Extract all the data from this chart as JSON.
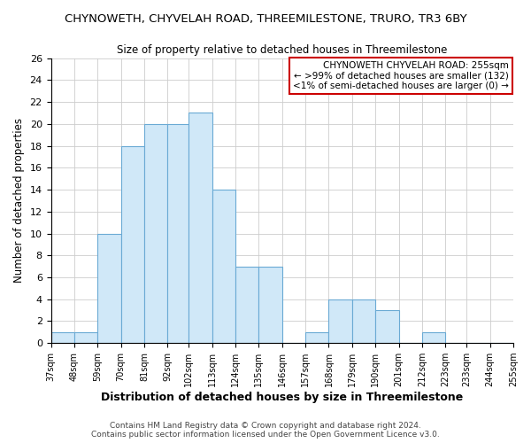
{
  "title": "CHYNOWETH, CHYVELAH ROAD, THREEMILESTONE, TRURO, TR3 6BY",
  "subtitle": "Size of property relative to detached houses in Threemilestone",
  "xlabel": "Distribution of detached houses by size in Threemilestone",
  "ylabel": "Number of detached properties",
  "bin_edges": [
    37,
    48,
    59,
    70,
    81,
    92,
    102,
    113,
    124,
    135,
    146,
    157,
    168,
    179,
    190,
    201,
    212,
    223,
    233,
    244,
    255
  ],
  "counts": [
    1,
    1,
    10,
    18,
    20,
    20,
    21,
    14,
    7,
    7,
    0,
    1,
    4,
    4,
    3,
    0,
    1,
    0,
    0,
    0
  ],
  "bar_color": "#d0e8f8",
  "bar_edge_color": "#6aaad4",
  "annotation_title": "CHYNOWETH CHYVELAH ROAD: 255sqm",
  "annotation_line1": "← >99% of detached houses are smaller (132)",
  "annotation_line2": "<1% of semi-detached houses are larger (0) →",
  "annotation_box_color": "#ffffff",
  "annotation_box_edge_color": "#cc0000",
  "ylim": [
    0,
    26
  ],
  "yticks": [
    0,
    2,
    4,
    6,
    8,
    10,
    12,
    14,
    16,
    18,
    20,
    22,
    24,
    26
  ],
  "tick_labels": [
    "37sqm",
    "48sqm",
    "59sqm",
    "70sqm",
    "81sqm",
    "92sqm",
    "102sqm",
    "113sqm",
    "124sqm",
    "135sqm",
    "146sqm",
    "157sqm",
    "168sqm",
    "179sqm",
    "190sqm",
    "201sqm",
    "212sqm",
    "223sqm",
    "233sqm",
    "244sqm",
    "255sqm"
  ],
  "footer_line1": "Contains HM Land Registry data © Crown copyright and database right 2024.",
  "footer_line2": "Contains public sector information licensed under the Open Government Licence v3.0.",
  "background_color": "#ffffff",
  "grid_color": "#cccccc",
  "title_fontsize": 9.5,
  "subtitle_fontsize": 8.5,
  "ylabel_fontsize": 8.5,
  "xlabel_fontsize": 9,
  "tick_fontsize": 7,
  "footer_fontsize": 6.5,
  "annotation_fontsize": 7.5
}
